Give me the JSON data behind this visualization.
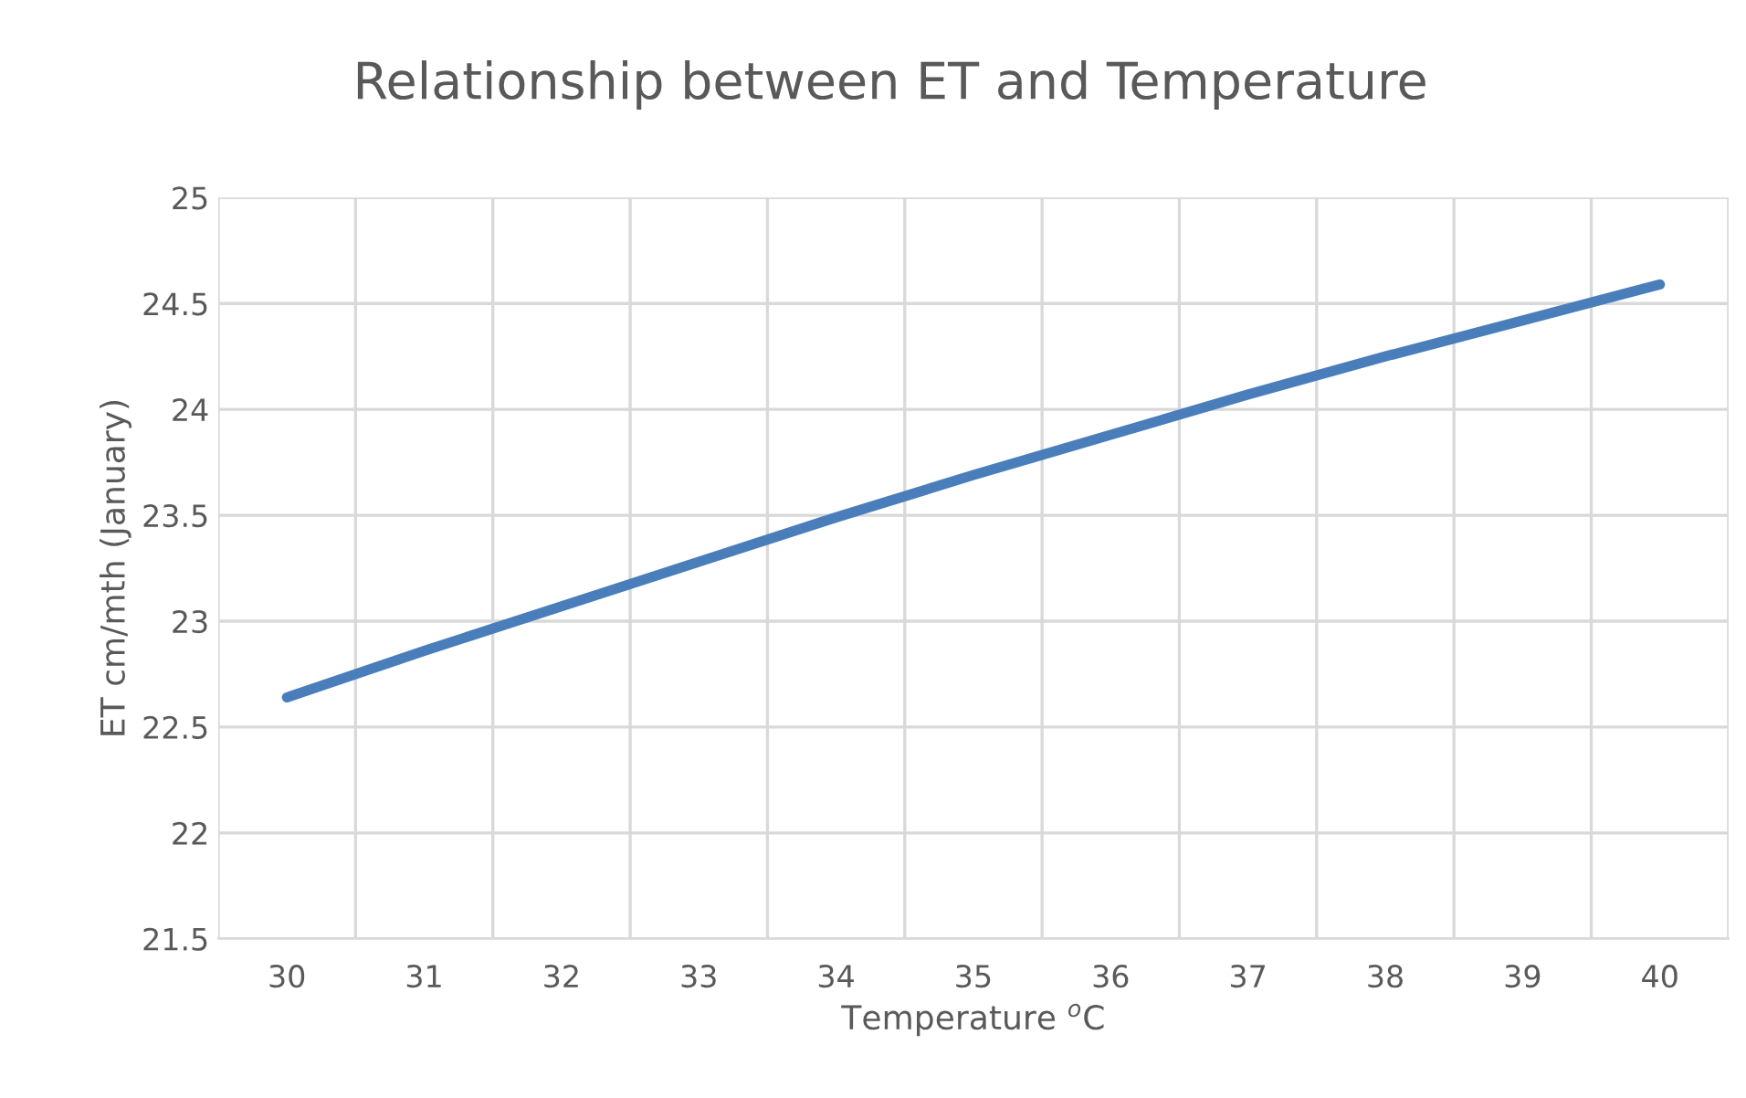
{
  "chart_data": {
    "type": "line",
    "title": "Relationship between ET and Temperature",
    "xlabel": "Temperature $^{o}$C",
    "ylabel": "ET cm/mth (January)",
    "categories": [
      "30",
      "31",
      "32",
      "33",
      "34",
      "35",
      "36",
      "37",
      "38",
      "39",
      "40"
    ],
    "series": [
      {
        "color": "#4a7ebb",
        "values": [
          22.64,
          22.86,
          23.07,
          23.28,
          23.49,
          23.69,
          23.88,
          24.07,
          24.25,
          24.42,
          24.59
        ]
      }
    ],
    "ylim": [
      21.5,
      25
    ],
    "yticks": [
      21.5,
      22,
      22.5,
      23,
      23.5,
      24,
      24.5,
      25
    ],
    "grid": true,
    "marker": "none",
    "line_style": "solid"
  }
}
